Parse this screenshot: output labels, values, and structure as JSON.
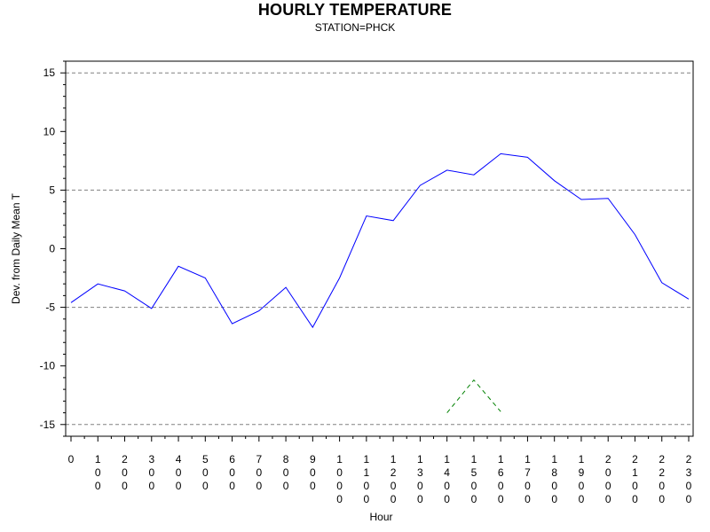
{
  "chart_data": {
    "type": "line",
    "title": "HOURLY TEMPERATURE",
    "subtitle": "STATION=PHCK",
    "xlabel": "Hour",
    "ylabel": "Dev. from Daily Mean T",
    "ylim": [
      -16,
      16
    ],
    "xlim": [
      0,
      2300
    ],
    "y_ticks": [
      -15,
      -10,
      -5,
      0,
      5,
      10,
      15
    ],
    "y_tick_labels": [
      "-15",
      "-10",
      "-5",
      "0",
      "5",
      "10",
      "15"
    ],
    "x_ticks": [
      0,
      100,
      200,
      300,
      400,
      500,
      600,
      700,
      800,
      900,
      1000,
      1100,
      1200,
      1300,
      1400,
      1500,
      1600,
      1700,
      1800,
      1900,
      2000,
      2100,
      2200,
      2300
    ],
    "x_tick_labels": [
      "0",
      "100",
      "200",
      "300",
      "400",
      "500",
      "600",
      "700",
      "800",
      "900",
      "1000",
      "1100",
      "1200",
      "1300",
      "1400",
      "1500",
      "1600",
      "1700",
      "1800",
      "1900",
      "2000",
      "2100",
      "2200",
      "2300"
    ],
    "reference_lines": [
      -15,
      -5,
      5,
      15
    ],
    "grid": false,
    "series": [
      {
        "color": "#0000ff",
        "dash": false,
        "x": [
          0,
          100,
          200,
          300,
          400,
          500,
          600,
          700,
          800,
          900,
          1000,
          1100,
          1200,
          1300,
          1400,
          1500,
          1600,
          1700,
          1800,
          1900,
          2000,
          2100,
          2200,
          2300
        ],
        "y": [
          -4.6,
          -3.0,
          -3.6,
          -5.1,
          -1.5,
          -2.5,
          -6.4,
          -5.3,
          -3.3,
          -6.7,
          -2.5,
          2.8,
          2.4,
          5.4,
          6.7,
          6.3,
          8.1,
          7.8,
          5.8,
          4.2,
          4.3,
          1.2,
          -2.9,
          -4.3
        ]
      },
      {
        "color": "#008000",
        "dash": true,
        "x": [
          1400,
          1500,
          1600
        ],
        "y": [
          -14.0,
          -11.2,
          -13.9
        ]
      }
    ]
  }
}
